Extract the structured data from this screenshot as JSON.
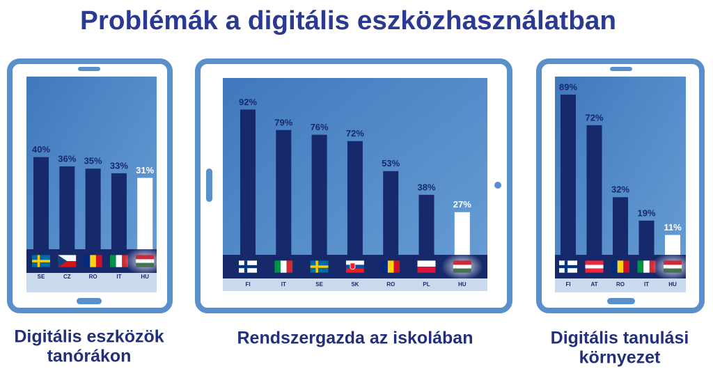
{
  "title": "Problémák a digitális eszközhasználatban",
  "chart_data": [
    {
      "type": "bar",
      "title": [
        "Digitális eszközök",
        "tanórákon"
      ],
      "categories": [
        "SE",
        "CZ",
        "RO",
        "IT",
        "HU"
      ],
      "values": [
        40,
        36,
        35,
        33,
        31
      ],
      "value_labels": [
        "40%",
        "36%",
        "35%",
        "33%",
        "31%"
      ],
      "colors": [
        "#16296b",
        "#16296b",
        "#16296b",
        "#16296b",
        "#ffffff"
      ],
      "ylim": [
        0,
        75
      ]
    },
    {
      "type": "bar",
      "title": [
        "Rendszergazda az iskolában"
      ],
      "categories": [
        "FI",
        "IT",
        "SE",
        "SK",
        "RO",
        "PL",
        "HU"
      ],
      "values": [
        92,
        79,
        76,
        72,
        53,
        38,
        27
      ],
      "value_labels": [
        "92%",
        "79%",
        "76%",
        "72%",
        "53%",
        "38%",
        "27%"
      ],
      "colors": [
        "#16296b",
        "#16296b",
        "#16296b",
        "#16296b",
        "#16296b",
        "#16296b",
        "#ffffff"
      ],
      "ylim": [
        0,
        112
      ]
    },
    {
      "type": "bar",
      "title": [
        "Digitális tanulási",
        "környezet"
      ],
      "categories": [
        "FI",
        "AT",
        "RO",
        "IT",
        "HU"
      ],
      "values": [
        89,
        72,
        32,
        19,
        11
      ],
      "value_labels": [
        "89%",
        "72%",
        "32%",
        "19%",
        "11%"
      ],
      "colors": [
        "#16296b",
        "#16296b",
        "#16296b",
        "#16296b",
        "#ffffff"
      ],
      "ylim": [
        0,
        99
      ]
    }
  ]
}
